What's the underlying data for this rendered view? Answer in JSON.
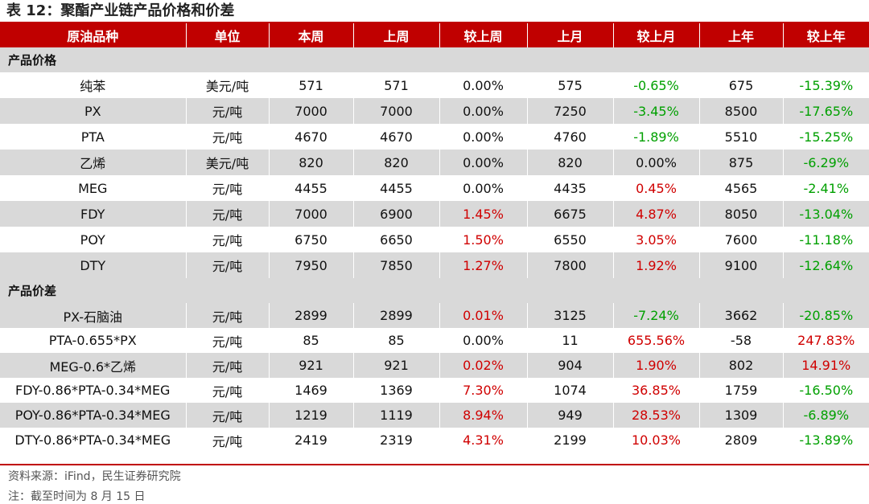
{
  "title": "表 12：聚酯产业链产品价格和价差",
  "columns": [
    "原油品种",
    "单位",
    "本周",
    "上周",
    "较上周",
    "上月",
    "较上月",
    "上年",
    "较上年"
  ],
  "sections": [
    {
      "label": "产品价格",
      "rows": [
        {
          "name": "纯苯",
          "unit": "美元/吨",
          "this_week": "571",
          "last_week": "571",
          "wow": "0.00%",
          "wow_dir": "flat",
          "last_month": "575",
          "mom": "-0.65%",
          "mom_dir": "down",
          "last_year": "675",
          "yoy": "-15.39%",
          "yoy_dir": "down"
        },
        {
          "name": "PX",
          "unit": "元/吨",
          "this_week": "7000",
          "last_week": "7000",
          "wow": "0.00%",
          "wow_dir": "flat",
          "last_month": "7250",
          "mom": "-3.45%",
          "mom_dir": "down",
          "last_year": "8500",
          "yoy": "-17.65%",
          "yoy_dir": "down"
        },
        {
          "name": "PTA",
          "unit": "元/吨",
          "this_week": "4670",
          "last_week": "4670",
          "wow": "0.00%",
          "wow_dir": "flat",
          "last_month": "4760",
          "mom": "-1.89%",
          "mom_dir": "down",
          "last_year": "5510",
          "yoy": "-15.25%",
          "yoy_dir": "down"
        },
        {
          "name": "乙烯",
          "unit": "美元/吨",
          "this_week": "820",
          "last_week": "820",
          "wow": "0.00%",
          "wow_dir": "flat",
          "last_month": "820",
          "mom": "0.00%",
          "mom_dir": "flat",
          "last_year": "875",
          "yoy": "-6.29%",
          "yoy_dir": "down"
        },
        {
          "name": "MEG",
          "unit": "元/吨",
          "this_week": "4455",
          "last_week": "4455",
          "wow": "0.00%",
          "wow_dir": "flat",
          "last_month": "4435",
          "mom": "0.45%",
          "mom_dir": "up",
          "last_year": "4565",
          "yoy": "-2.41%",
          "yoy_dir": "down"
        },
        {
          "name": "FDY",
          "unit": "元/吨",
          "this_week": "7000",
          "last_week": "6900",
          "wow": "1.45%",
          "wow_dir": "up",
          "last_month": "6675",
          "mom": "4.87%",
          "mom_dir": "up",
          "last_year": "8050",
          "yoy": "-13.04%",
          "yoy_dir": "down"
        },
        {
          "name": "POY",
          "unit": "元/吨",
          "this_week": "6750",
          "last_week": "6650",
          "wow": "1.50%",
          "wow_dir": "up",
          "last_month": "6550",
          "mom": "3.05%",
          "mom_dir": "up",
          "last_year": "7600",
          "yoy": "-11.18%",
          "yoy_dir": "down"
        },
        {
          "name": "DTY",
          "unit": "元/吨",
          "this_week": "7950",
          "last_week": "7850",
          "wow": "1.27%",
          "wow_dir": "up",
          "last_month": "7800",
          "mom": "1.92%",
          "mom_dir": "up",
          "last_year": "9100",
          "yoy": "-12.64%",
          "yoy_dir": "down"
        }
      ]
    },
    {
      "label": "产品价差",
      "rows": [
        {
          "name": "PX-石脑油",
          "unit": "元/吨",
          "this_week": "2899",
          "last_week": "2899",
          "wow": "0.01%",
          "wow_dir": "up",
          "last_month": "3125",
          "mom": "-7.24%",
          "mom_dir": "down",
          "last_year": "3662",
          "yoy": "-20.85%",
          "yoy_dir": "down"
        },
        {
          "name": "PTA-0.655*PX",
          "unit": "元/吨",
          "this_week": "85",
          "last_week": "85",
          "wow": "0.00%",
          "wow_dir": "flat",
          "last_month": "11",
          "mom": "655.56%",
          "mom_dir": "up",
          "last_year": "-58",
          "yoy": "247.83%",
          "yoy_dir": "up"
        },
        {
          "name": "MEG-0.6*乙烯",
          "unit": "元/吨",
          "this_week": "921",
          "last_week": "921",
          "wow": "0.02%",
          "wow_dir": "up",
          "last_month": "904",
          "mom": "1.90%",
          "mom_dir": "up",
          "last_year": "802",
          "yoy": "14.91%",
          "yoy_dir": "up"
        },
        {
          "name": "FDY-0.86*PTA-0.34*MEG",
          "unit": "元/吨",
          "this_week": "1469",
          "last_week": "1369",
          "wow": "7.30%",
          "wow_dir": "up",
          "last_month": "1074",
          "mom": "36.85%",
          "mom_dir": "up",
          "last_year": "1759",
          "yoy": "-16.50%",
          "yoy_dir": "down"
        },
        {
          "name": "POY-0.86*PTA-0.34*MEG",
          "unit": "元/吨",
          "this_week": "1219",
          "last_week": "1119",
          "wow": "8.94%",
          "wow_dir": "up",
          "last_month": "949",
          "mom": "28.53%",
          "mom_dir": "up",
          "last_year": "1309",
          "yoy": "-6.89%",
          "yoy_dir": "down"
        },
        {
          "name": "DTY-0.86*PTA-0.34*MEG",
          "unit": "元/吨",
          "this_week": "2419",
          "last_week": "2319",
          "wow": "4.31%",
          "wow_dir": "up",
          "last_month": "2199",
          "mom": "10.03%",
          "mom_dir": "up",
          "last_year": "2809",
          "yoy": "-13.89%",
          "yoy_dir": "down"
        }
      ]
    }
  ],
  "source": "资料来源：iFind，民生证券研究院",
  "note": "注：截至时间为 8 月 15 日",
  "colors": {
    "header_bg": "#c00000",
    "shade_bg": "#d9d9d9",
    "up": "#d00000",
    "down": "#00a000",
    "flat": "#111111"
  }
}
